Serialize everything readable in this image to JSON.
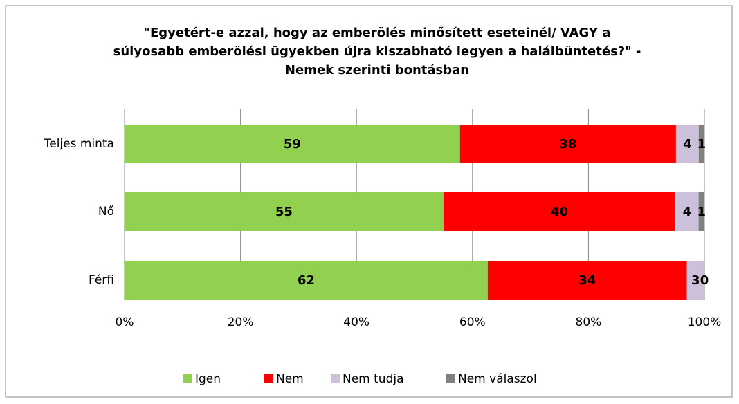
{
  "chart_data": {
    "type": "stacked_percent_barh",
    "title": [
      "\"Egyetért-e azzal, hogy az emberölés minősített eseteinél/ VAGY a",
      "súlyosabb emberölési ügyekben újra kiszabható  legyen a halálbüntetés?\" -",
      "Nemek szerinti bontásban"
    ],
    "categories": [
      "Teljes minta",
      "Nő",
      "Férfi"
    ],
    "series": [
      {
        "name": "Igen",
        "color": "#92d050",
        "values": [
          59,
          55,
          62
        ]
      },
      {
        "name": "Nem",
        "color": "#ff0000",
        "values": [
          38,
          40,
          34
        ]
      },
      {
        "name": "Nem tudja",
        "color": "#ccc0da",
        "values": [
          4,
          4,
          3
        ]
      },
      {
        "name": "Nem válaszol",
        "color": "#808080",
        "values": [
          1,
          1,
          0
        ]
      }
    ],
    "xlim": [
      0,
      100
    ],
    "xticks": [
      {
        "value": 0,
        "label": "0%"
      },
      {
        "value": 20,
        "label": "20%"
      },
      {
        "value": 40,
        "label": "40%"
      },
      {
        "value": 60,
        "label": "60%"
      },
      {
        "value": 80,
        "label": "80%"
      },
      {
        "value": 100,
        "label": "100%"
      }
    ],
    "grid": true,
    "legend": "bottom"
  }
}
